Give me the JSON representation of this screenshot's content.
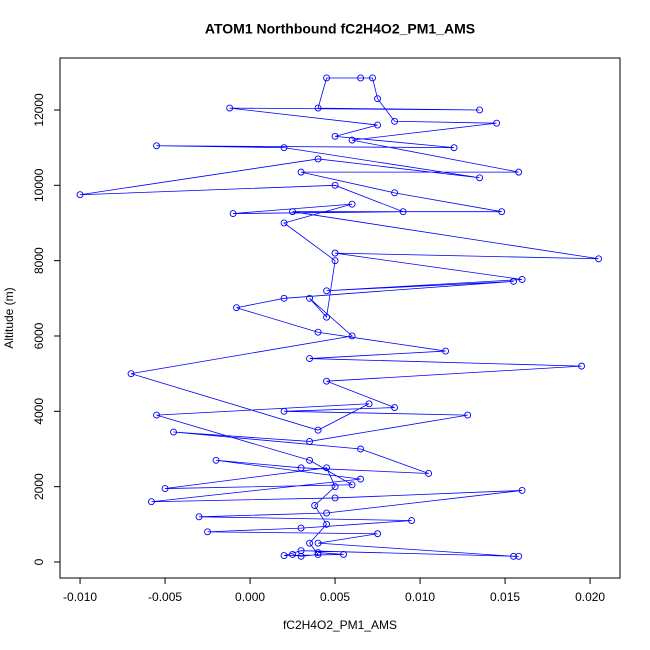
{
  "chart_data": {
    "type": "scatter",
    "title": "ATOM1 Northbound fC2H4O2_PM1_AMS",
    "x_label": "fC2H4O2_PM1_AMS",
    "y_label": "Altitude (m)",
    "color": "#0000ff",
    "connect": true,
    "xlim": [
      -0.01118,
      0.02176
    ],
    "ylim": [
      -425,
      13380
    ],
    "xticks": [
      {
        "value": -0.01,
        "label": "-0.010"
      },
      {
        "value": -0.005,
        "label": "-0.005"
      },
      {
        "value": 0,
        "label": "0.000"
      },
      {
        "value": 0.005,
        "label": "0.005"
      },
      {
        "value": 0.01,
        "label": "0.010"
      },
      {
        "value": 0.015,
        "label": "0.015"
      },
      {
        "value": 0.02,
        "label": "0.020"
      }
    ],
    "yticks": [
      0,
      2000,
      4000,
      6000,
      8000,
      10000,
      12000
    ],
    "x": [
      0.0025,
      0.003,
      0.004,
      0.0035,
      0.0045,
      0.0038,
      0.005,
      0.0045,
      -0.005,
      0.006,
      0.0035,
      -0.0055,
      0.007,
      0.004,
      -0.007,
      0.006,
      0.0035,
      0.0045,
      0.005,
      0.002,
      0.006,
      -0.001,
      0.009,
      0.005,
      -0.01,
      0.004,
      0.0135,
      0.002,
      -0.0055,
      0.012,
      0.005,
      0.0075,
      -0.0012,
      0.0135,
      0.004,
      0.0045,
      0.0065,
      0.0072,
      0.0075,
      0.0085,
      0.0145,
      0.006,
      0.0158,
      0.003,
      0.0085,
      0.0148,
      0.0025,
      0.0205,
      0.005,
      0.016,
      0.0045,
      0.0155,
      0.002,
      -0.0008,
      0.004,
      0.0115,
      0.0035,
      0.0195,
      0.0045,
      0.0085,
      0.002,
      0.0128,
      0.0035,
      -0.0045,
      0.0065,
      0.0105,
      0.003,
      -0.002,
      0.0065,
      -0.0058,
      0.005,
      0.016,
      0.0045,
      -0.003,
      0.0095,
      0.003,
      -0.0025,
      0.0075,
      0.004,
      0.0155,
      0.0158,
      0.003,
      0.002,
      0.0055,
      0.004
    ],
    "values": [
      200,
      150,
      200,
      500,
      1000,
      1500,
      2000,
      2500,
      1950,
      2050,
      2700,
      3900,
      4200,
      3500,
      5000,
      6000,
      7000,
      6500,
      8000,
      9000,
      9500,
      9250,
      9300,
      10000,
      9750,
      10700,
      10200,
      11000,
      11050,
      11000,
      11300,
      11600,
      12050,
      12000,
      12050,
      12850,
      12850,
      12850,
      12300,
      11700,
      11650,
      11200,
      10350,
      10350,
      9800,
      9300,
      9300,
      8050,
      8200,
      7500,
      7200,
      7450,
      7000,
      6750,
      6100,
      5600,
      5400,
      5200,
      4800,
      4100,
      4000,
      3900,
      3200,
      3450,
      3000,
      2350,
      2500,
      2700,
      2200,
      1600,
      1700,
      1900,
      1300,
      1200,
      1100,
      900,
      800,
      750,
      500,
      150,
      150,
      300,
      170,
      200,
      250
    ]
  }
}
